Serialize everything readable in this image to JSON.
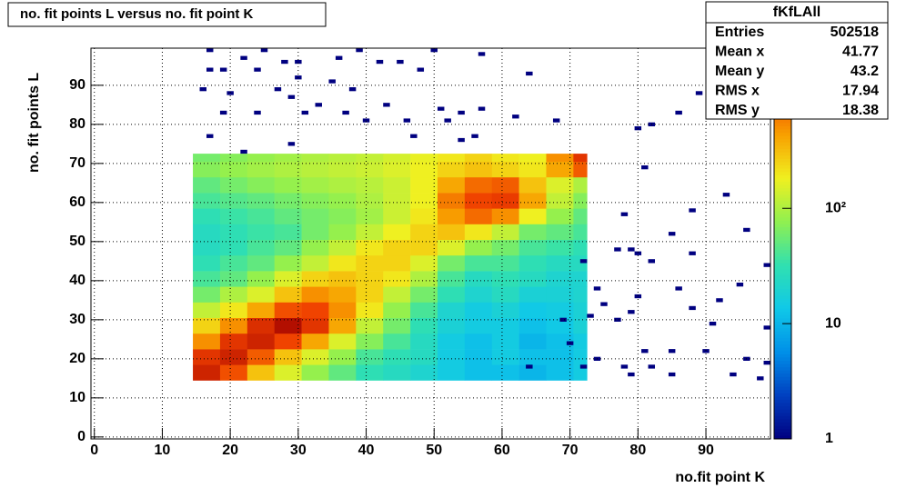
{
  "chart_data": {
    "type": "heatmap",
    "title": "no. fit points L versus no. fit point K",
    "x_label": "no.fit point K",
    "y_label": "no. fit points  L",
    "xlim": [
      -0.5,
      99.5
    ],
    "ylim": [
      -0.5,
      99.5
    ],
    "xticks": [
      0,
      10,
      20,
      30,
      40,
      50,
      60,
      70,
      80,
      90
    ],
    "yticks": [
      0,
      10,
      20,
      30,
      40,
      50,
      60,
      70,
      80,
      90
    ],
    "grid": true,
    "zlog": true,
    "zlim": [
      1,
      2450
    ],
    "zticks": [
      1,
      10,
      {
        "value": 100,
        "label": "10²"
      }
    ],
    "palette": [
      "#000080",
      "#0040c0",
      "#0090e8",
      "#10c8e8",
      "#30e0b0",
      "#90f050",
      "#f0f020",
      "#f8a000",
      "#f04000",
      "#a00000"
    ],
    "xbins": [
      14.5,
      18.5,
      22.5,
      26.5,
      30.5,
      34.5,
      38.5,
      42.5,
      46.5,
      50.5,
      54.5,
      58.5,
      62.5,
      66.5,
      70.5,
      72.5
    ],
    "ybins": [
      14.5,
      18.5,
      22.5,
      26.5,
      30.5,
      34.5,
      38.5,
      42.5,
      46.5,
      50.5,
      54.5,
      58.5,
      62.5,
      66.5,
      70.5,
      72.5
    ],
    "values": [
      [
        1500,
        900,
        300,
        150,
        80,
        50,
        30,
        25,
        20,
        15,
        12,
        12,
        10,
        12,
        15
      ],
      [
        1200,
        1500,
        800,
        300,
        150,
        80,
        40,
        30,
        25,
        15,
        12,
        15,
        12,
        12,
        15
      ],
      [
        500,
        1200,
        1500,
        1000,
        400,
        150,
        70,
        40,
        25,
        15,
        12,
        15,
        10,
        12,
        15
      ],
      [
        250,
        500,
        1300,
        2000,
        1200,
        400,
        120,
        60,
        30,
        18,
        15,
        15,
        12,
        14,
        18
      ],
      [
        120,
        200,
        400,
        900,
        1000,
        500,
        200,
        80,
        40,
        20,
        15,
        18,
        14,
        15,
        18
      ],
      [
        60,
        100,
        150,
        300,
        500,
        400,
        250,
        120,
        60,
        30,
        20,
        25,
        18,
        18,
        20
      ],
      [
        40,
        50,
        80,
        150,
        250,
        300,
        250,
        200,
        100,
        40,
        25,
        30,
        25,
        20,
        20
      ],
      [
        30,
        40,
        50,
        80,
        120,
        200,
        250,
        250,
        150,
        60,
        40,
        40,
        30,
        25,
        25
      ],
      [
        25,
        30,
        40,
        50,
        80,
        120,
        200,
        250,
        250,
        150,
        80,
        60,
        40,
        35,
        30
      ],
      [
        25,
        30,
        35,
        40,
        60,
        80,
        120,
        180,
        250,
        300,
        200,
        120,
        60,
        50,
        40
      ],
      [
        30,
        35,
        40,
        50,
        60,
        70,
        90,
        130,
        200,
        450,
        700,
        500,
        180,
        80,
        50
      ],
      [
        40,
        45,
        50,
        60,
        70,
        80,
        100,
        130,
        180,
        600,
        1000,
        1100,
        400,
        120,
        70
      ],
      [
        50,
        60,
        70,
        80,
        90,
        100,
        110,
        130,
        180,
        400,
        700,
        800,
        300,
        150,
        100
      ],
      [
        70,
        80,
        90,
        100,
        110,
        120,
        130,
        150,
        180,
        250,
        300,
        250,
        200,
        400,
        800
      ],
      [
        60,
        70,
        80,
        90,
        100,
        110,
        120,
        140,
        170,
        200,
        250,
        200,
        180,
        500,
        1200
      ]
    ],
    "outliers": {
      "x": [
        17,
        25,
        39,
        50,
        57,
        22,
        28,
        30,
        36,
        42,
        45,
        17,
        19,
        24,
        48,
        64,
        35,
        30,
        16,
        20,
        27,
        38,
        93,
        29,
        33,
        43,
        51,
        19,
        24,
        31,
        37,
        54,
        57,
        46,
        52,
        40,
        62,
        68,
        82,
        86,
        17,
        47,
        54,
        56,
        29,
        22,
        89,
        80,
        81,
        93,
        88,
        78,
        96,
        85,
        77,
        79,
        80,
        72,
        99,
        82,
        88,
        74,
        80,
        95,
        86,
        92,
        75,
        79,
        88,
        73,
        69,
        77,
        91,
        99,
        81,
        85,
        74,
        78,
        82,
        85,
        96,
        90,
        79,
        70,
        72,
        64,
        94,
        99,
        98
      ],
      "y": [
        99,
        99,
        99,
        99,
        98,
        97,
        96,
        96,
        97,
        96,
        96,
        94,
        94,
        94,
        94,
        93,
        91,
        92,
        89,
        88,
        89,
        89,
        89,
        87,
        85,
        85,
        84,
        83,
        83,
        83,
        83,
        83,
        84,
        81,
        81,
        81,
        82,
        81,
        80,
        83,
        77,
        77,
        76,
        77,
        75,
        73,
        88,
        79,
        69,
        62,
        58,
        57,
        53,
        52,
        48,
        48,
        47,
        45,
        44,
        45,
        47,
        38,
        36,
        39,
        38,
        35,
        34,
        32,
        33,
        31,
        30,
        30,
        29,
        28,
        22,
        22,
        20,
        18,
        18,
        16,
        20,
        22,
        16,
        24,
        18,
        18,
        16,
        19,
        15
      ],
      "values": [
        1,
        1,
        1,
        1,
        1,
        1,
        1,
        1,
        1,
        1,
        1,
        1,
        1,
        1,
        1,
        1,
        1,
        1,
        1,
        1,
        1,
        1,
        1,
        1,
        1,
        1,
        1,
        1,
        1,
        1,
        1,
        1,
        1,
        1,
        1,
        1,
        1,
        1,
        1,
        1,
        1,
        1,
        1,
        1,
        1,
        1,
        1,
        1,
        1,
        1,
        1,
        1,
        1,
        1,
        1,
        1,
        1,
        1,
        1,
        1,
        1,
        1,
        1,
        1,
        1,
        1,
        1,
        1,
        1,
        1,
        1,
        1,
        1,
        1,
        1,
        1,
        1,
        1,
        1,
        1,
        1,
        1,
        1,
        1,
        1,
        1,
        1,
        1,
        1
      ]
    },
    "stats": {
      "title": "fKfLAll",
      "rows": [
        [
          "Entries",
          "502518"
        ],
        [
          "Mean x",
          "41.77"
        ],
        [
          "Mean y",
          "43.2"
        ],
        [
          "RMS x",
          "17.94"
        ],
        [
          "RMS y",
          "18.38"
        ]
      ]
    }
  }
}
